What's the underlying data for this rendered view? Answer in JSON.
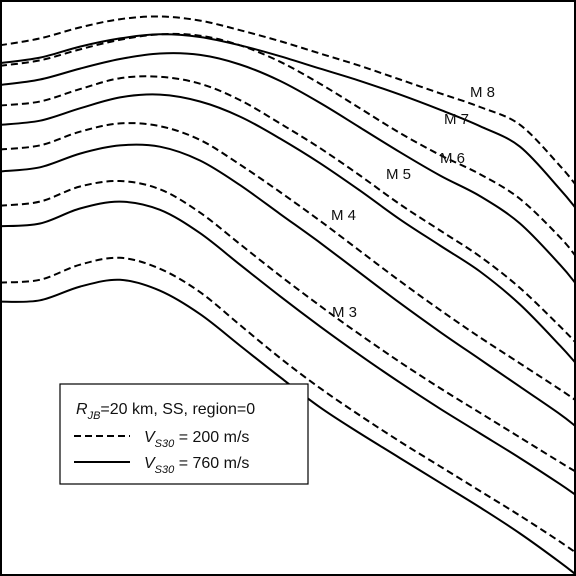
{
  "chart_data": {
    "type": "line",
    "legend_placement": "bottom-left",
    "grid": false,
    "legend": {
      "title": "R_JB=20 km, SS, region=0",
      "title_main": "R",
      "title_sub": "JB",
      "title_rest": "=20 km, SS, region=0",
      "entries": [
        {
          "style": "dashed",
          "label": "V_S30 = 200 m/s",
          "symbol": "V",
          "sub": "S30",
          "rest": " = 200 m/s"
        },
        {
          "style": "solid",
          "label": "V_S30 = 760 m/s",
          "symbol": "V",
          "sub": "S30",
          "rest": " = 760 m/s"
        }
      ]
    },
    "magnitude_labels": [
      "M 3",
      "M 4",
      "M 5",
      "M 6",
      "M 7",
      "M 8"
    ],
    "x": [
      0,
      40,
      80,
      120,
      160,
      200,
      240,
      280,
      320,
      360,
      400,
      440,
      480,
      520,
      560,
      576
    ],
    "series": [
      {
        "name": "M 3",
        "vs30": 200,
        "values": [
          -1.32,
          -1.28,
          -1.06,
          -0.96,
          -1.12,
          -1.46,
          -1.94,
          -2.42,
          -2.86,
          -3.26,
          -3.64,
          -4.0,
          -4.36,
          -4.72,
          -5.1,
          -5.26
        ]
      },
      {
        "name": "M 3",
        "vs30": 760,
        "values": [
          -1.6,
          -1.58,
          -1.38,
          -1.28,
          -1.44,
          -1.78,
          -2.24,
          -2.7,
          -3.14,
          -3.52,
          -3.88,
          -4.24,
          -4.6,
          -4.98,
          -5.4,
          -5.58
        ]
      },
      {
        "name": "M 4",
        "vs30": 200,
        "values": [
          -0.2,
          -0.14,
          0.08,
          0.16,
          0.04,
          -0.3,
          -0.76,
          -1.22,
          -1.66,
          -2.08,
          -2.48,
          -2.86,
          -3.22,
          -3.58,
          -3.94,
          -4.08
        ]
      },
      {
        "name": "M 4",
        "vs30": 760,
        "values": [
          -0.5,
          -0.46,
          -0.24,
          -0.14,
          -0.26,
          -0.6,
          -1.06,
          -1.52,
          -1.96,
          -2.38,
          -2.78,
          -3.16,
          -3.52,
          -3.88,
          -4.26,
          -4.42
        ]
      },
      {
        "name": "M 5",
        "vs30": 200,
        "values": [
          0.62,
          0.68,
          0.88,
          1.0,
          0.96,
          0.76,
          0.4,
          0.0,
          -0.42,
          -0.86,
          -1.3,
          -1.72,
          -2.12,
          -2.5,
          -2.88,
          -3.04
        ]
      },
      {
        "name": "M 5",
        "vs30": 760,
        "values": [
          0.3,
          0.36,
          0.56,
          0.68,
          0.66,
          0.46,
          0.1,
          -0.32,
          -0.74,
          -1.18,
          -1.62,
          -2.04,
          -2.44,
          -2.84,
          -3.24,
          -3.42
        ]
      },
      {
        "name": "M 6",
        "vs30": 200,
        "values": [
          1.26,
          1.32,
          1.5,
          1.66,
          1.68,
          1.58,
          1.34,
          1.0,
          0.64,
          0.24,
          -0.18,
          -0.56,
          -0.94,
          -1.4,
          -1.96,
          -2.2
        ]
      },
      {
        "name": "M 6",
        "vs30": 760,
        "values": [
          0.98,
          1.04,
          1.22,
          1.38,
          1.42,
          1.32,
          1.1,
          0.78,
          0.42,
          0.02,
          -0.4,
          -0.78,
          -1.16,
          -1.64,
          -2.24,
          -2.5
        ]
      },
      {
        "name": "M 7",
        "vs30": 200,
        "values": [
          1.84,
          1.92,
          2.08,
          2.22,
          2.3,
          2.28,
          2.14,
          1.9,
          1.58,
          1.22,
          0.86,
          0.54,
          0.26,
          -0.1,
          -0.66,
          -0.94
        ]
      },
      {
        "name": "M 7",
        "vs30": 760,
        "values": [
          1.56,
          1.64,
          1.8,
          1.94,
          2.02,
          2.0,
          1.86,
          1.62,
          1.3,
          0.94,
          0.58,
          0.24,
          -0.06,
          -0.46,
          -1.06,
          -1.34
        ]
      },
      {
        "name": "M 8",
        "vs30": 200,
        "values": [
          2.14,
          2.24,
          2.4,
          2.52,
          2.56,
          2.5,
          2.36,
          2.2,
          2.02,
          1.84,
          1.64,
          1.44,
          1.24,
          0.98,
          0.38,
          0.1
        ]
      },
      {
        "name": "M 8",
        "vs30": 760,
        "values": [
          1.88,
          1.96,
          2.12,
          2.24,
          2.3,
          2.26,
          2.14,
          1.98,
          1.8,
          1.62,
          1.42,
          1.2,
          0.96,
          0.66,
          0.04,
          -0.24
        ]
      }
    ],
    "ylim": [
      -5.6,
      2.8
    ]
  }
}
